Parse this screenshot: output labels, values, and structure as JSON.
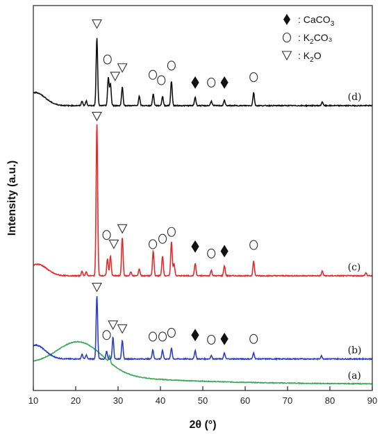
{
  "chart_data": {
    "type": "line",
    "xlabel": "2θ (°)",
    "ylabel": "Intensity (a.u.)",
    "xlim": [
      10,
      90
    ],
    "xticks": [
      "10",
      "20",
      "30",
      "40",
      "50",
      "60",
      "70",
      "80",
      "90"
    ],
    "y_ticks_shown": false,
    "grid": false,
    "legend": {
      "placement": "top-right",
      "entries": [
        {
          "symbol": "filled-diamond",
          "label_prefix": ": CaCO",
          "subscript": "3",
          "suffix": ""
        },
        {
          "symbol": "open-circle",
          "label_prefix": ": K",
          "subscript": "2",
          "suffix": "CO₃"
        },
        {
          "symbol": "open-triangle-down",
          "label_prefix": ": K",
          "subscript": "2",
          "suffix": "O"
        }
      ]
    },
    "series": [
      {
        "name": "(a)",
        "color": "#3aa655",
        "baseline": 0.4,
        "noise": 0.022,
        "hump": {
          "center": 21,
          "width": 5.5,
          "height": 2.0
        },
        "decay": {
          "height": 1.25,
          "tau": 22
        },
        "peaks": [
          [
            28.0,
            0.45
          ]
        ],
        "markers": []
      },
      {
        "name": "(b)",
        "color": "#2b3ec4",
        "baseline": 2.05,
        "noise": 0.03,
        "hump": {
          "center": 10.5,
          "width": 2.3,
          "height": 0.9
        },
        "decay": {
          "height": 0,
          "tau": 10
        },
        "peaks": [
          [
            21.5,
            0.3
          ],
          [
            22.5,
            0.25
          ],
          [
            25.0,
            4.1
          ],
          [
            27.3,
            0.5
          ],
          [
            28.8,
            1.4
          ],
          [
            31.0,
            1.2
          ],
          [
            38.2,
            0.6
          ],
          [
            40.5,
            0.55
          ],
          [
            42.6,
            0.7
          ],
          [
            48.2,
            0.55
          ],
          [
            52.0,
            0.22
          ],
          [
            55.1,
            0.38
          ],
          [
            62.0,
            0.4
          ],
          [
            78.0,
            0.2
          ]
        ],
        "markers": [
          {
            "type": "triangle",
            "x": 25.0,
            "y": 6.7
          },
          {
            "type": "triangle",
            "x": 28.8,
            "y": 4.25
          },
          {
            "type": "triangle",
            "x": 31.0,
            "y": 4.0
          },
          {
            "type": "circle",
            "x": 27.3,
            "y": 3.6
          },
          {
            "type": "circle",
            "x": 38.2,
            "y": 3.5
          },
          {
            "type": "circle",
            "x": 40.5,
            "y": 3.5
          },
          {
            "type": "circle",
            "x": 42.6,
            "y": 3.75
          },
          {
            "type": "diamond",
            "x": 48.2,
            "y": 3.6
          },
          {
            "type": "circle",
            "x": 52.0,
            "y": 3.3
          },
          {
            "type": "diamond",
            "x": 55.1,
            "y": 3.35
          },
          {
            "type": "circle",
            "x": 62.0,
            "y": 3.35
          }
        ]
      },
      {
        "name": "(c)",
        "color": "#e5282a",
        "baseline": 7.45,
        "noise": 0.03,
        "hump": {
          "center": 11.0,
          "width": 2.2,
          "height": 0.75
        },
        "decay": {
          "height": 0,
          "tau": 10
        },
        "peaks": [
          [
            21.5,
            0.3
          ],
          [
            22.5,
            0.25
          ],
          [
            25.0,
            9.9
          ],
          [
            27.5,
            1.1
          ],
          [
            28.2,
            1.3
          ],
          [
            31.0,
            2.5
          ],
          [
            33.0,
            0.25
          ],
          [
            35.0,
            0.45
          ],
          [
            38.3,
            1.6
          ],
          [
            40.5,
            1.3
          ],
          [
            42.6,
            2.2
          ],
          [
            43.2,
            0.8
          ],
          [
            48.2,
            0.8
          ],
          [
            52.0,
            0.35
          ],
          [
            55.1,
            0.65
          ],
          [
            62.0,
            0.95
          ],
          [
            78.2,
            0.3
          ],
          [
            88.5,
            0.2
          ]
        ],
        "markers": [
          {
            "type": "triangle",
            "x": 25.0,
            "y": 17.8
          },
          {
            "type": "triangle",
            "x": 31.0,
            "y": 10.5
          },
          {
            "type": "triangle",
            "x": 29.0,
            "y": 9.5
          },
          {
            "type": "circle",
            "x": 27.3,
            "y": 10.1
          },
          {
            "type": "circle",
            "x": 38.2,
            "y": 9.5
          },
          {
            "type": "circle",
            "x": 40.5,
            "y": 9.85
          },
          {
            "type": "circle",
            "x": 42.6,
            "y": 10.3
          },
          {
            "type": "diamond",
            "x": 48.2,
            "y": 9.35
          },
          {
            "type": "circle",
            "x": 52.0,
            "y": 8.9
          },
          {
            "type": "diamond",
            "x": 55.1,
            "y": 9.05
          },
          {
            "type": "circle",
            "x": 62.0,
            "y": 9.45
          }
        ]
      },
      {
        "name": "(d)",
        "color": "#111111",
        "baseline": 18.5,
        "noise": 0.03,
        "hump": {
          "center": 10.5,
          "width": 2.3,
          "height": 0.85
        },
        "decay": {
          "height": 0,
          "tau": 10
        },
        "peaks": [
          [
            21.5,
            0.3
          ],
          [
            22.5,
            0.3
          ],
          [
            25.0,
            4.4
          ],
          [
            27.7,
            1.8
          ],
          [
            28.2,
            1.4
          ],
          [
            31.0,
            1.2
          ],
          [
            35.0,
            0.6
          ],
          [
            38.3,
            0.75
          ],
          [
            40.5,
            0.6
          ],
          [
            42.6,
            1.6
          ],
          [
            48.2,
            0.55
          ],
          [
            52.0,
            0.3
          ],
          [
            55.1,
            0.35
          ],
          [
            62.0,
            0.85
          ],
          [
            78.2,
            0.25
          ]
        ],
        "markers": [
          {
            "type": "triangle",
            "x": 25.0,
            "y": 23.8
          },
          {
            "type": "circle",
            "x": 27.5,
            "y": 21.5
          },
          {
            "type": "triangle",
            "x": 29.3,
            "y": 20.4
          },
          {
            "type": "triangle",
            "x": 31.0,
            "y": 20.95
          },
          {
            "type": "circle",
            "x": 38.2,
            "y": 20.5
          },
          {
            "type": "circle",
            "x": 40.2,
            "y": 20.15
          },
          {
            "type": "circle",
            "x": 42.6,
            "y": 21.1
          },
          {
            "type": "diamond",
            "x": 48.2,
            "y": 20.0
          },
          {
            "type": "circle",
            "x": 52.0,
            "y": 20.0
          },
          {
            "type": "diamond",
            "x": 55.1,
            "y": 20.0
          },
          {
            "type": "circle",
            "x": 62.0,
            "y": 20.35
          }
        ]
      }
    ],
    "ylim": [
      0,
      25
    ]
  }
}
